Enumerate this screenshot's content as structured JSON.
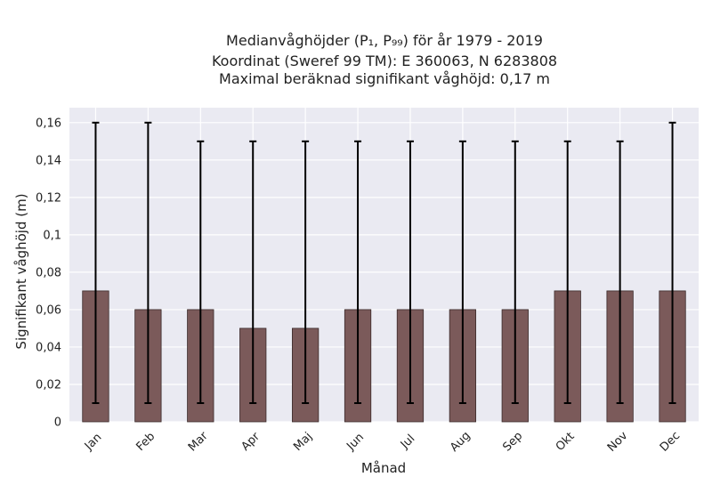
{
  "chart_data": {
    "type": "bar",
    "title": [
      "Medianvåghöjder (P₁, P₉₉) för år 1979 - 2019",
      "Koordinat (Sweref 99 TM): E 360063, N 6283808",
      "Maximal beräknad signifikant våghöjd: 0,17 m"
    ],
    "xlabel": "Månad",
    "ylabel": "Signifikant våghöjd (m)",
    "categories": [
      "Jan",
      "Feb",
      "Mar",
      "Apr",
      "Maj",
      "Jun",
      "Jul",
      "Aug",
      "Sep",
      "Okt",
      "Nov",
      "Dec"
    ],
    "values": [
      0.07,
      0.06,
      0.06,
      0.05,
      0.05,
      0.06,
      0.06,
      0.06,
      0.06,
      0.07,
      0.07,
      0.07
    ],
    "p1": [
      0.01,
      0.01,
      0.01,
      0.01,
      0.01,
      0.01,
      0.01,
      0.01,
      0.01,
      0.01,
      0.01,
      0.01
    ],
    "p99": [
      0.16,
      0.16,
      0.15,
      0.15,
      0.15,
      0.15,
      0.15,
      0.15,
      0.15,
      0.15,
      0.15,
      0.16
    ],
    "ylim": [
      0,
      0.168
    ],
    "yticks": [
      0,
      0.02,
      0.04,
      0.06,
      0.08,
      0.1,
      0.12,
      0.14,
      0.16
    ],
    "ytick_labels": [
      "0",
      "0,02",
      "0,04",
      "0,06",
      "0,08",
      "0,1",
      "0,12",
      "0,14",
      "0,16"
    ],
    "grid": true,
    "colors": {
      "background": "#eaeaf2",
      "bar": "#7b5a5a",
      "bar_edge": "#3a2a2a",
      "errorbar": "#000000",
      "grid": "#ffffff"
    }
  }
}
